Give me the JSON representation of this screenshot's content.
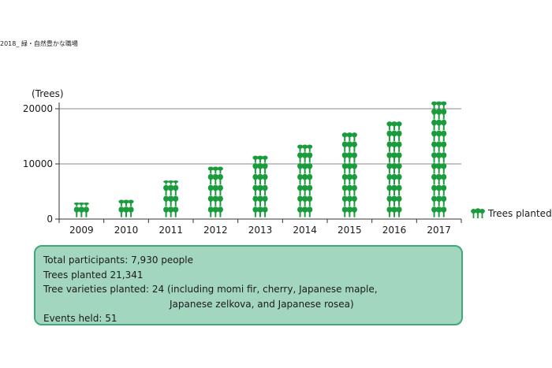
{
  "header": {
    "text": "2018_ 緑・自然豊かな職場"
  },
  "colors": {
    "tree": "#1a9c3d",
    "box_fill": "#a3d6bf",
    "box_border": "#3fa878",
    "grid": "#888888"
  },
  "chart_data": {
    "type": "bar",
    "categories": [
      "2009",
      "2010",
      "2011",
      "2012",
      "2013",
      "2014",
      "2015",
      "2016",
      "2017"
    ],
    "values": [
      3000,
      3500,
      7000,
      9500,
      11500,
      13500,
      15700,
      17700,
      21341
    ],
    "ylabel": "(Trees)",
    "yticks": [
      "0",
      "10000",
      "20000"
    ],
    "ylim": [
      0,
      20000
    ],
    "legend": {
      "label": "Trees planted",
      "icon": "tree-icon",
      "position": "right"
    }
  },
  "summary": {
    "line1": "Total participants: 7,930 people",
    "line2": "Trees planted 21,341",
    "line3": "Tree varieties planted: 24 (including momi fir, cherry, Japanese maple,",
    "line4": "Japanese zelkova, and Japanese rosea)",
    "line5": "Events held: 51"
  }
}
